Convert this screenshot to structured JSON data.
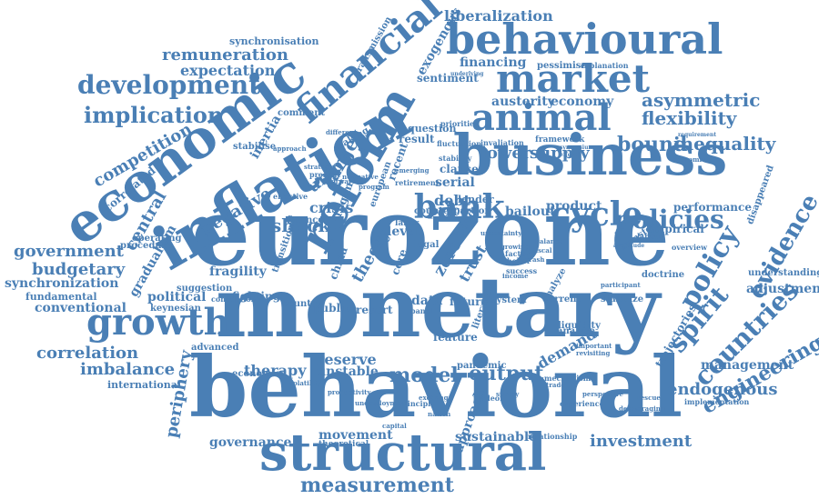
{
  "cloud": {
    "color": "#4a7fb5",
    "words": [
      "eurozone",
      "monetary",
      "behavioral",
      "business",
      "economic",
      "inflation",
      "structural",
      "behavioural",
      "market",
      "animal",
      "reform",
      "financial",
      "growth",
      "bank",
      "cycle",
      "policies",
      "policy",
      "spirit",
      "countries",
      "evidence",
      "engineering",
      "development",
      "implication",
      "remuneration",
      "expectation",
      "synchronisation",
      "liberalization",
      "financing",
      "pessimism",
      "explanation",
      "sentiment",
      "austerity",
      "economy",
      "flexibility",
      "asymmetric",
      "inequality",
      "bound",
      "lower",
      "supply",
      "framework",
      "competition",
      "correlated",
      "government",
      "budgetary",
      "synchronization",
      "fundamental",
      "conventional",
      "correlation",
      "imbalance",
      "international",
      "periphery",
      "governance",
      "movement",
      "measurement",
      "investment",
      "sustainable",
      "relationship",
      "approach",
      "output",
      "demand",
      "model",
      "reserve",
      "unstable",
      "therapy",
      "economics",
      "political",
      "keynesian",
      "fragility",
      "shock",
      "crisis",
      "union",
      "target",
      "central",
      "gradualism",
      "negative",
      "debt",
      "lender",
      "bailout",
      "product",
      "performance",
      "endogenous",
      "management",
      "adjustment",
      "understanding",
      "implementation",
      "experience",
      "stabilize",
      "current",
      "analyse",
      "liquidity",
      "doctrine",
      "overview",
      "empirical",
      "transfer",
      "trajectories",
      "disappeared",
      "data",
      "future",
      "system",
      "analyze",
      "literature",
      "pandemic",
      "feature",
      "public",
      "resort",
      "theory",
      "level",
      "zero",
      "core",
      "trust",
      "price",
      "serial",
      "clause",
      "stability",
      "fluctuation",
      "priorities",
      "question",
      "result",
      "making",
      "inertia",
      "stabilise",
      "comment",
      "transmission",
      "exogenous",
      "underlying",
      "transition",
      "fighting",
      "advanced",
      "operating",
      "procedure",
      "suggestion",
      "theoretical",
      "country",
      "panel",
      "principle",
      "conception",
      "emerging",
      "regime",
      "finance",
      "retirement",
      "labor",
      "legal",
      "bond",
      "european",
      "china",
      "recent",
      "counterpartion",
      "requirement",
      "economists",
      "labour",
      "amplitude",
      "participant",
      "important",
      "revisiting",
      "invaliation",
      "symposium",
      "effect",
      "factor",
      "belief",
      "success",
      "growing",
      "uncertainty",
      "income",
      "balance",
      "fiscal",
      "crash",
      "effective",
      "present",
      "strategy",
      "normative",
      "forward",
      "program",
      "different",
      "perspective",
      "deleveraging",
      "rescue",
      "trade",
      "survey",
      "nation",
      "tradeoff",
      "mechanism",
      "exchange",
      "unemployment",
      "productivity",
      "volatility",
      "capital",
      "approach"
    ]
  }
}
